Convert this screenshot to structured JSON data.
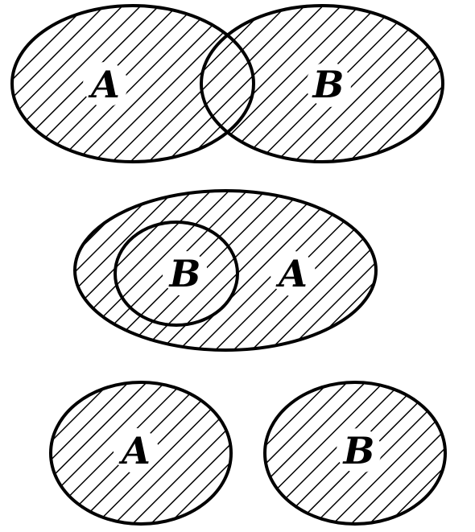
{
  "diagrams": [
    {
      "name": "overlapping",
      "labels": {
        "a": "A",
        "b": "B"
      }
    },
    {
      "name": "nested",
      "labels": {
        "outer": "A",
        "inner": "B"
      }
    },
    {
      "name": "disjoint",
      "labels": {
        "a": "A",
        "b": "B"
      }
    }
  ],
  "style": {
    "stroke_color": "#000000",
    "background": "#ffffff",
    "fill_pattern": "diagonal-hatch"
  }
}
